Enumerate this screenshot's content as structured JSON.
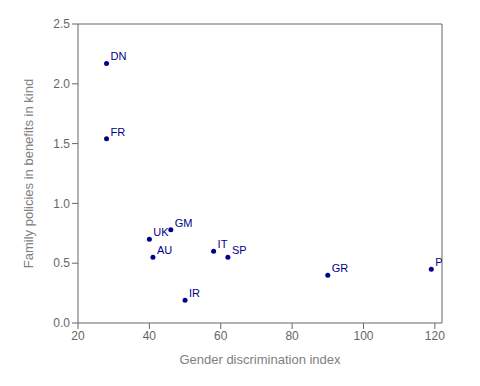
{
  "chart_data": {
    "type": "scatter",
    "xlabel": "Gender discrimination index",
    "ylabel": "Family policies in benefits in kind",
    "x": [
      28,
      28,
      40,
      41,
      46,
      50,
      58,
      62,
      90,
      119
    ],
    "values": [
      2.17,
      1.54,
      0.7,
      0.55,
      0.78,
      0.19,
      0.6,
      0.55,
      0.4,
      0.45
    ],
    "labels": [
      "DN",
      "FR",
      "UK",
      "AU",
      "GM",
      "IR",
      "IT",
      "SP",
      "GR",
      "PG"
    ],
    "color": "#00008B",
    "xlim": [
      20,
      122
    ],
    "ylim": [
      0,
      2.5
    ],
    "xticks": [
      20,
      40,
      60,
      80,
      100,
      120
    ],
    "yticks": [
      {
        "value": 0,
        "label": "0.0"
      },
      0.5,
      {
        "value": 1,
        "label": "1.0"
      },
      1.5,
      {
        "value": 2,
        "label": "2.0"
      },
      2.5
    ],
    "grid": false
  }
}
